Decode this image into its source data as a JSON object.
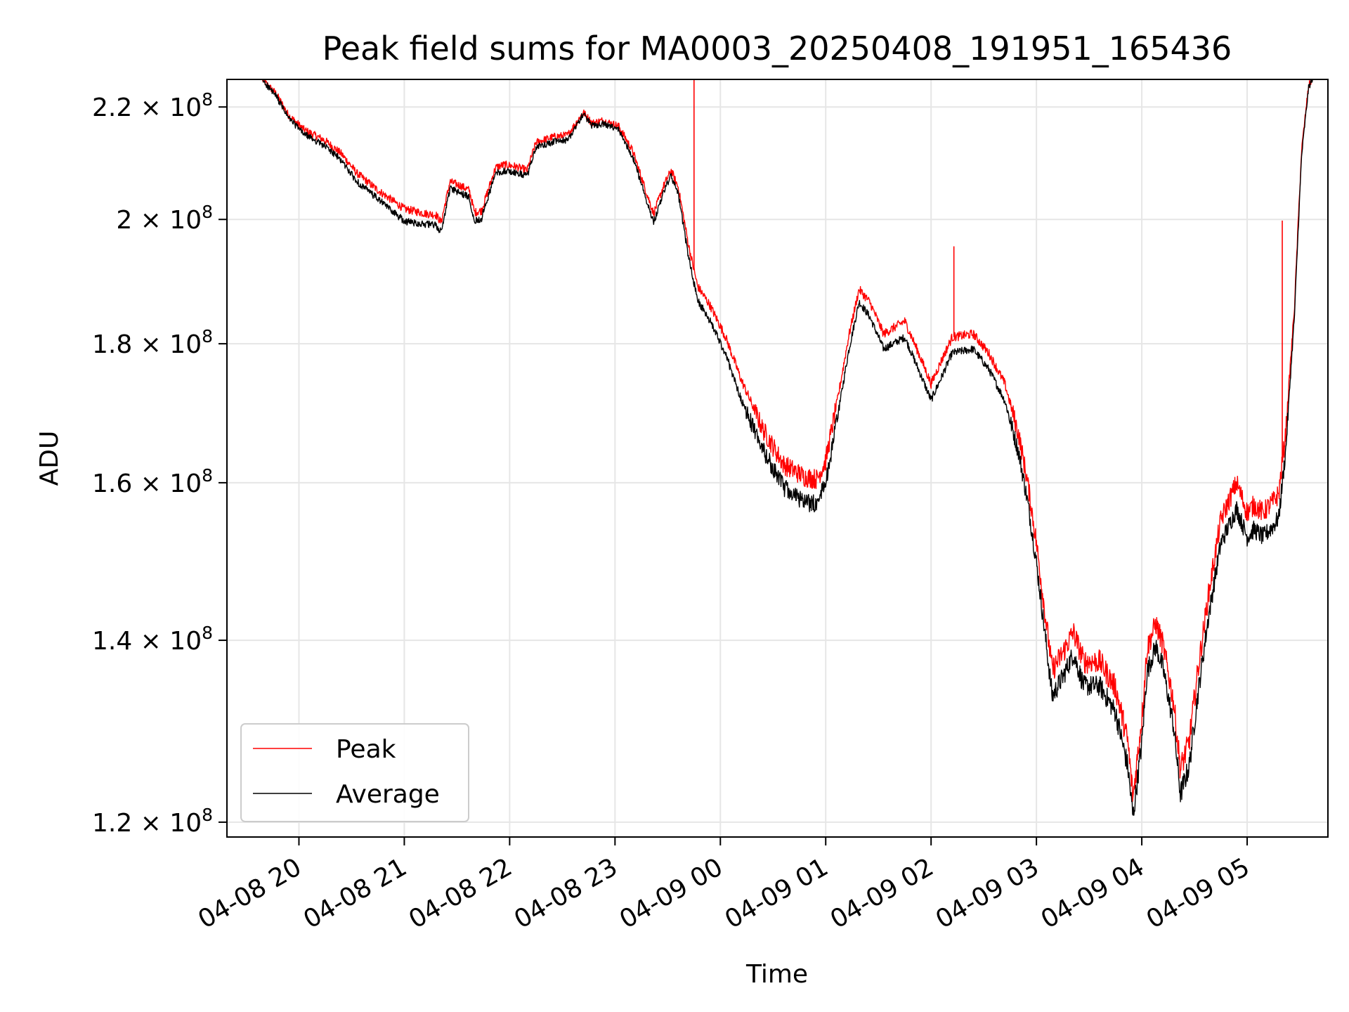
{
  "chart_data": {
    "type": "line",
    "title": "Peak field sums for MA0003_20250408_191951_165436",
    "xlabel": "Time",
    "ylabel": "ADU",
    "yscale": "log",
    "grid": true,
    "legend": "lower-left",
    "xlim": [
      "2025-04-08 19:19",
      "2025-04-09 05:46"
    ],
    "ylim": [
      118500000,
      225200000
    ],
    "x_ticks": [
      {
        "t": "2025-04-08 20:00",
        "label": "04-08 20"
      },
      {
        "t": "2025-04-08 21:00",
        "label": "04-08 21"
      },
      {
        "t": "2025-04-08 22:00",
        "label": "04-08 22"
      },
      {
        "t": "2025-04-08 23:00",
        "label": "04-08 23"
      },
      {
        "t": "2025-04-09 00:00",
        "label": "04-09 00"
      },
      {
        "t": "2025-04-09 01:00",
        "label": "04-09 01"
      },
      {
        "t": "2025-04-09 02:00",
        "label": "04-09 02"
      },
      {
        "t": "2025-04-09 03:00",
        "label": "04-09 03"
      },
      {
        "t": "2025-04-09 04:00",
        "label": "04-09 04"
      },
      {
        "t": "2025-04-09 05:00",
        "label": "04-09 05"
      }
    ],
    "y_ticks": [
      {
        "v": 120000000,
        "mant": "1.2",
        "exp": "8"
      },
      {
        "v": 140000000,
        "mant": "1.4",
        "exp": "8"
      },
      {
        "v": 160000000,
        "mant": "1.6",
        "exp": "8"
      },
      {
        "v": 180000000,
        "mant": "1.8",
        "exp": "8"
      },
      {
        "v": 200000000,
        "mant": "2",
        "exp": "8"
      },
      {
        "v": 220000000,
        "mant": "2.2",
        "exp": "8"
      }
    ],
    "series": [
      {
        "name": "Peak",
        "color": "#ff0000",
        "noise": 700000,
        "points": [
          [
            "2025-04-08 19:19",
            225200000
          ],
          [
            "2025-04-08 19:39",
            225200000
          ],
          [
            "2025-04-08 19:47",
            222500000
          ],
          [
            "2025-04-08 19:54",
            218500000
          ],
          [
            "2025-04-08 20:03",
            215800000
          ],
          [
            "2025-04-08 20:15",
            213800000
          ],
          [
            "2025-04-08 20:24",
            211500000
          ],
          [
            "2025-04-08 20:33",
            208000000
          ],
          [
            "2025-04-08 20:45",
            205000000
          ],
          [
            "2025-04-08 21:00",
            201800000
          ],
          [
            "2025-04-08 21:12",
            201000000
          ],
          [
            "2025-04-08 21:18",
            200800000
          ],
          [
            "2025-04-08 21:21",
            199500000
          ],
          [
            "2025-04-08 21:26",
            206500000
          ],
          [
            "2025-04-08 21:32",
            205800000
          ],
          [
            "2025-04-08 21:37",
            205000000
          ],
          [
            "2025-04-08 21:40",
            201200000
          ],
          [
            "2025-04-08 21:44",
            201500000
          ],
          [
            "2025-04-08 21:52",
            209000000
          ],
          [
            "2025-04-08 21:57",
            209500000
          ],
          [
            "2025-04-08 22:03",
            209200000
          ],
          [
            "2025-04-08 22:10",
            208500000
          ],
          [
            "2025-04-08 22:15",
            213500000
          ],
          [
            "2025-04-08 22:25",
            214500000
          ],
          [
            "2025-04-08 22:33",
            214800000
          ],
          [
            "2025-04-08 22:42",
            219000000
          ],
          [
            "2025-04-08 22:47",
            217000000
          ],
          [
            "2025-04-08 22:53",
            217500000
          ],
          [
            "2025-04-08 23:02",
            216500000
          ],
          [
            "2025-04-08 23:10",
            212000000
          ],
          [
            "2025-04-08 23:18",
            204500000
          ],
          [
            "2025-04-08 23:22",
            201000000
          ],
          [
            "2025-04-08 23:28",
            206000000
          ],
          [
            "2025-04-08 23:32",
            208500000
          ],
          [
            "2025-04-08 23:36",
            205500000
          ],
          [
            "2025-04-08 23:42",
            195500000
          ],
          [
            "2025-04-08 23:47",
            189000000
          ],
          [
            "2025-04-08 23:54",
            186000000
          ],
          [
            "2025-04-09 00:03",
            181000000
          ],
          [
            "2025-04-09 00:12",
            174500000
          ],
          [
            "2025-04-09 00:24",
            167500000
          ],
          [
            "2025-04-09 00:36",
            162500000
          ],
          [
            "2025-04-09 00:48",
            160800000
          ],
          [
            "2025-04-09 00:55",
            160500000
          ],
          [
            "2025-04-09 01:00",
            163000000
          ],
          [
            "2025-04-09 01:07",
            172000000
          ],
          [
            "2025-04-09 01:13",
            181000000
          ],
          [
            "2025-04-09 01:19",
            188500000
          ],
          [
            "2025-04-09 01:25",
            186500000
          ],
          [
            "2025-04-09 01:33",
            181500000
          ],
          [
            "2025-04-09 01:45",
            183500000
          ],
          [
            "2025-04-09 01:53",
            178500000
          ],
          [
            "2025-04-09 02:00",
            174000000
          ],
          [
            "2025-04-09 02:06",
            177500000
          ],
          [
            "2025-04-09 02:12",
            181000000
          ],
          [
            "2025-04-09 02:24",
            181500000
          ],
          [
            "2025-04-09 02:33",
            178500000
          ],
          [
            "2025-04-09 02:42",
            174000000
          ],
          [
            "2025-04-09 02:50",
            166500000
          ],
          [
            "2025-04-09 02:55",
            160000000
          ],
          [
            "2025-04-09 03:00",
            152000000
          ],
          [
            "2025-04-09 03:05",
            143000000
          ],
          [
            "2025-04-09 03:09",
            136500000
          ],
          [
            "2025-04-09 03:15",
            138500000
          ],
          [
            "2025-04-09 03:21",
            141000000
          ],
          [
            "2025-04-09 03:27",
            137500000
          ],
          [
            "2025-04-09 03:36",
            137500000
          ],
          [
            "2025-04-09 03:45",
            134500000
          ],
          [
            "2025-04-09 03:52",
            128500000
          ],
          [
            "2025-04-09 03:55",
            122500000
          ],
          [
            "2025-04-09 04:00",
            131000000
          ],
          [
            "2025-04-09 04:03",
            139000000
          ],
          [
            "2025-04-09 04:08",
            142000000
          ],
          [
            "2025-04-09 04:12",
            139500000
          ],
          [
            "2025-04-09 04:18",
            133000000
          ],
          [
            "2025-04-09 04:22",
            125500000
          ],
          [
            "2025-04-09 04:27",
            128500000
          ],
          [
            "2025-04-09 04:32",
            136500000
          ],
          [
            "2025-04-09 04:38",
            145500000
          ],
          [
            "2025-04-09 04:45",
            155000000
          ],
          [
            "2025-04-09 04:54",
            160000000
          ],
          [
            "2025-04-09 05:00",
            156000000
          ],
          [
            "2025-04-09 05:04",
            157000000
          ],
          [
            "2025-04-09 05:09",
            156000000
          ],
          [
            "2025-04-09 05:15",
            157500000
          ],
          [
            "2025-04-09 05:18",
            158500000
          ],
          [
            "2025-04-09 05:22",
            167000000
          ],
          [
            "2025-04-09 05:27",
            186000000
          ],
          [
            "2025-04-09 05:31",
            212000000
          ],
          [
            "2025-04-09 05:35",
            224000000
          ],
          [
            "2025-04-09 05:37",
            225200000
          ],
          [
            "2025-04-09 05:46",
            225200000
          ]
        ],
        "spikes": [
          [
            "2025-04-08 23:45",
            225200000
          ],
          [
            "2025-04-09 02:13",
            195500000
          ],
          [
            "2025-04-09 05:20",
            199800000
          ]
        ]
      },
      {
        "name": "Average",
        "color": "#000000",
        "noise": 600000,
        "points": [
          [
            "2025-04-08 19:19",
            225200000
          ],
          [
            "2025-04-08 19:39",
            225200000
          ],
          [
            "2025-04-08 19:47",
            222000000
          ],
          [
            "2025-04-08 19:54",
            218000000
          ],
          [
            "2025-04-08 20:03",
            215000000
          ],
          [
            "2025-04-08 20:15",
            212800000
          ],
          [
            "2025-04-08 20:24",
            210300000
          ],
          [
            "2025-04-08 20:33",
            206500000
          ],
          [
            "2025-04-08 20:45",
            203500000
          ],
          [
            "2025-04-08 21:00",
            199700000
          ],
          [
            "2025-04-08 21:12",
            199200000
          ],
          [
            "2025-04-08 21:18",
            199000000
          ],
          [
            "2025-04-08 21:21",
            197800000
          ],
          [
            "2025-04-08 21:26",
            205300000
          ],
          [
            "2025-04-08 21:32",
            204500000
          ],
          [
            "2025-04-08 21:37",
            203800000
          ],
          [
            "2025-04-08 21:40",
            199700000
          ],
          [
            "2025-04-08 21:44",
            200200000
          ],
          [
            "2025-04-08 21:52",
            208000000
          ],
          [
            "2025-04-08 21:57",
            208400000
          ],
          [
            "2025-04-08 22:03",
            208100000
          ],
          [
            "2025-04-08 22:10",
            207500000
          ],
          [
            "2025-04-08 22:15",
            212600000
          ],
          [
            "2025-04-08 22:25",
            213600000
          ],
          [
            "2025-04-08 22:33",
            213900000
          ],
          [
            "2025-04-08 22:42",
            218700000
          ],
          [
            "2025-04-08 22:47",
            216500000
          ],
          [
            "2025-04-08 22:53",
            216900000
          ],
          [
            "2025-04-08 23:02",
            215800000
          ],
          [
            "2025-04-08 23:10",
            211000000
          ],
          [
            "2025-04-08 23:18",
            203300000
          ],
          [
            "2025-04-08 23:22",
            199500000
          ],
          [
            "2025-04-08 23:28",
            205000000
          ],
          [
            "2025-04-08 23:32",
            207500000
          ],
          [
            "2025-04-08 23:36",
            204300000
          ],
          [
            "2025-04-08 23:42",
            193500000
          ],
          [
            "2025-04-08 23:47",
            186800000
          ],
          [
            "2025-04-08 23:54",
            183600000
          ],
          [
            "2025-04-09 00:03",
            178400000
          ],
          [
            "2025-04-09 00:12",
            171600000
          ],
          [
            "2025-04-09 00:24",
            164600000
          ],
          [
            "2025-04-09 00:36",
            159400000
          ],
          [
            "2025-04-09 00:48",
            157300000
          ],
          [
            "2025-04-09 00:55",
            157200000
          ],
          [
            "2025-04-09 01:00",
            160000000
          ],
          [
            "2025-04-09 01:07",
            169500000
          ],
          [
            "2025-04-09 01:13",
            178800000
          ],
          [
            "2025-04-09 01:19",
            186500000
          ],
          [
            "2025-04-09 01:25",
            184200000
          ],
          [
            "2025-04-09 01:33",
            179200000
          ],
          [
            "2025-04-09 01:45",
            181000000
          ],
          [
            "2025-04-09 01:53",
            176000000
          ],
          [
            "2025-04-09 02:00",
            171600000
          ],
          [
            "2025-04-09 02:06",
            175000000
          ],
          [
            "2025-04-09 02:12",
            178600000
          ],
          [
            "2025-04-09 02:24",
            179200000
          ],
          [
            "2025-04-09 02:33",
            176100000
          ],
          [
            "2025-04-09 02:42",
            171500000
          ],
          [
            "2025-04-09 02:50",
            164000000
          ],
          [
            "2025-04-09 02:55",
            157400000
          ],
          [
            "2025-04-09 03:00",
            149500000
          ],
          [
            "2025-04-09 03:05",
            140500000
          ],
          [
            "2025-04-09 03:09",
            133500000
          ],
          [
            "2025-04-09 03:15",
            135700000
          ],
          [
            "2025-04-09 03:21",
            138400000
          ],
          [
            "2025-04-09 03:27",
            134700000
          ],
          [
            "2025-04-09 03:36",
            134700000
          ],
          [
            "2025-04-09 03:45",
            131700000
          ],
          [
            "2025-04-09 03:52",
            125800000
          ],
          [
            "2025-04-09 03:55",
            120500000
          ],
          [
            "2025-04-09 04:00",
            128300000
          ],
          [
            "2025-04-09 04:03",
            136300000
          ],
          [
            "2025-04-09 04:08",
            139300000
          ],
          [
            "2025-04-09 04:12",
            136800000
          ],
          [
            "2025-04-09 04:18",
            130300000
          ],
          [
            "2025-04-09 04:22",
            122900000
          ],
          [
            "2025-04-09 04:27",
            125800000
          ],
          [
            "2025-04-09 04:32",
            133800000
          ],
          [
            "2025-04-09 04:38",
            142800000
          ],
          [
            "2025-04-09 04:45",
            152000000
          ],
          [
            "2025-04-09 04:54",
            156500000
          ],
          [
            "2025-04-09 05:00",
            152800000
          ],
          [
            "2025-04-09 05:04",
            153800000
          ],
          [
            "2025-04-09 05:09",
            152800000
          ],
          [
            "2025-04-09 05:15",
            154300000
          ],
          [
            "2025-04-09 05:18",
            155300000
          ],
          [
            "2025-04-09 05:22",
            164500000
          ],
          [
            "2025-04-09 05:27",
            184500000
          ],
          [
            "2025-04-09 05:31",
            211000000
          ],
          [
            "2025-04-09 05:35",
            223600000
          ],
          [
            "2025-04-09 05:37",
            225200000
          ],
          [
            "2025-04-09 05:46",
            225200000
          ]
        ],
        "spikes": []
      }
    ]
  }
}
